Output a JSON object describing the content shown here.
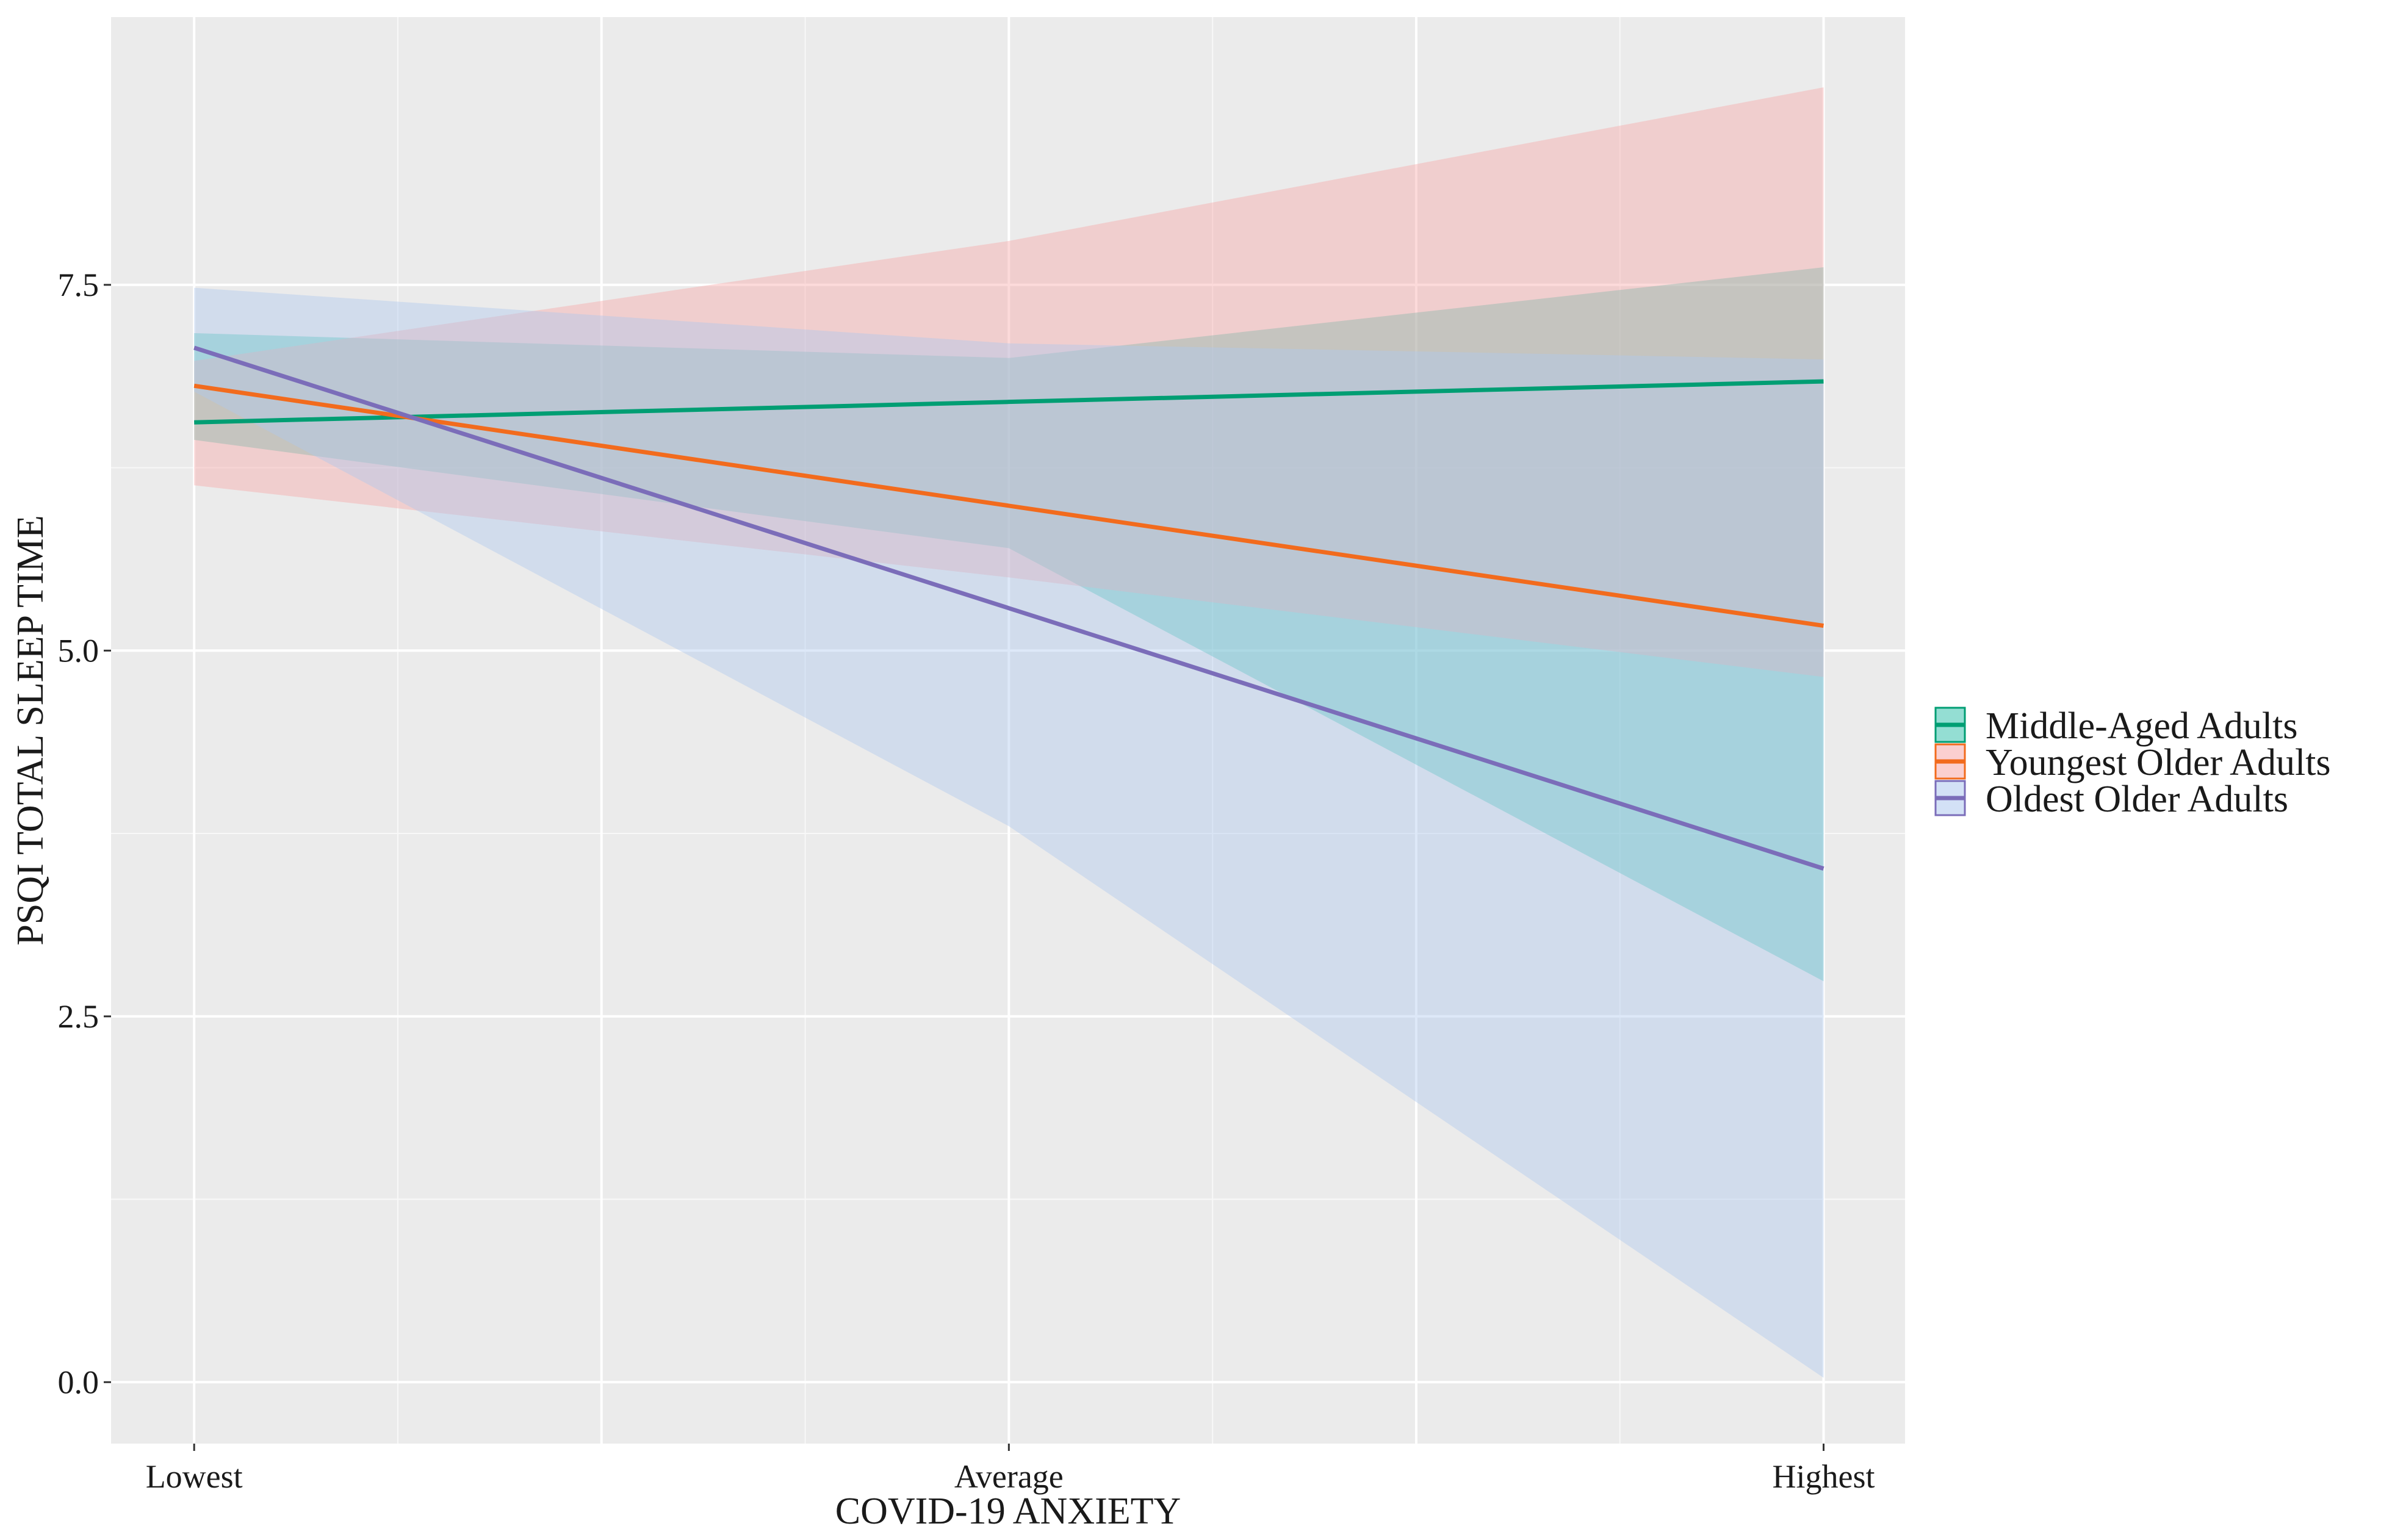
{
  "chart_data": {
    "type": "line",
    "title": "",
    "xlabel": "COVID-19 ANXIETY",
    "ylabel": "PSQI TOTAL SLEEP TIME",
    "x_tick_labels": [
      "Lowest",
      "Average",
      "Highest"
    ],
    "x": [
      0,
      0.5,
      1
    ],
    "xlim": [
      -0.051,
      1.05
    ],
    "ylim": [
      -0.42,
      9.33
    ],
    "y_ticks": [
      0,
      2.5,
      5,
      7.5
    ],
    "y_tick_labels": [
      "0.0",
      "2.5",
      "5.0",
      "7.5"
    ],
    "grid": true,
    "legend_position": "right",
    "series": [
      {
        "name": "Middle-Aged Adults",
        "color": "#009E73",
        "band_color": "#3CC2AE",
        "values": [
          6.56,
          6.7,
          6.84
        ],
        "lower": [
          6.44,
          5.7,
          2.74
        ],
        "upper": [
          7.17,
          7.0,
          7.62
        ]
      },
      {
        "name": "Youngest Older Adults",
        "color": "#F26B1D",
        "band_color": "#F7A8A8",
        "values": [
          6.81,
          5.99,
          5.17
        ],
        "lower": [
          6.13,
          5.5,
          4.82
        ],
        "upper": [
          6.98,
          7.8,
          8.85
        ]
      },
      {
        "name": "Oldest Older Adults",
        "color": "#7B6DB9",
        "band_color": "#AEC8EE",
        "values": [
          7.07,
          5.29,
          3.51
        ],
        "lower": [
          6.77,
          3.8,
          0.03
        ],
        "upper": [
          7.48,
          7.1,
          6.99
        ]
      }
    ]
  }
}
